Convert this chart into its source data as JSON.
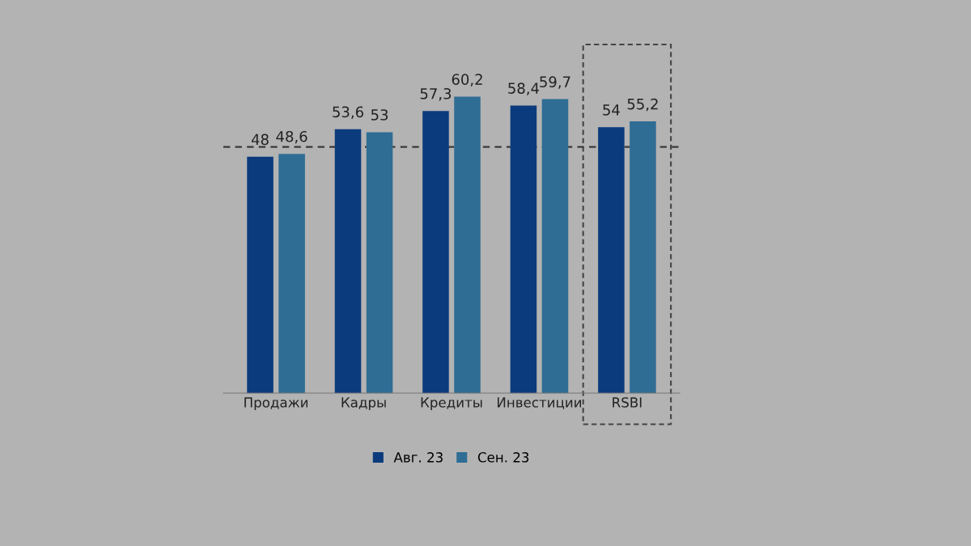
{
  "chart_data": {
    "type": "bar",
    "categories": [
      "Продажи",
      "Кадры",
      "Кредиты",
      "Инвестиции",
      "RSBI"
    ],
    "series": [
      {
        "name": "Авг. 23",
        "color": "#0b3b7c",
        "values": [
          48,
          53.6,
          57.3,
          58.4,
          54
        ],
        "value_labels": [
          "48",
          "53,6",
          "57,3",
          "58,4",
          "54"
        ]
      },
      {
        "name": "Сен. 23",
        "color": "#2f6d94",
        "values": [
          48.6,
          53,
          60.2,
          59.7,
          55.2
        ],
        "value_labels": [
          "48,6",
          "53",
          "60,2",
          "59,7",
          "55,2"
        ]
      }
    ],
    "tick_labels": "x",
    "legend": "bottom",
    "grid": false,
    "ref_lines": [
      {
        "axis": "y",
        "value": 50,
        "color": "#3a3a3a",
        "line_style": "dashed"
      }
    ]
  }
}
